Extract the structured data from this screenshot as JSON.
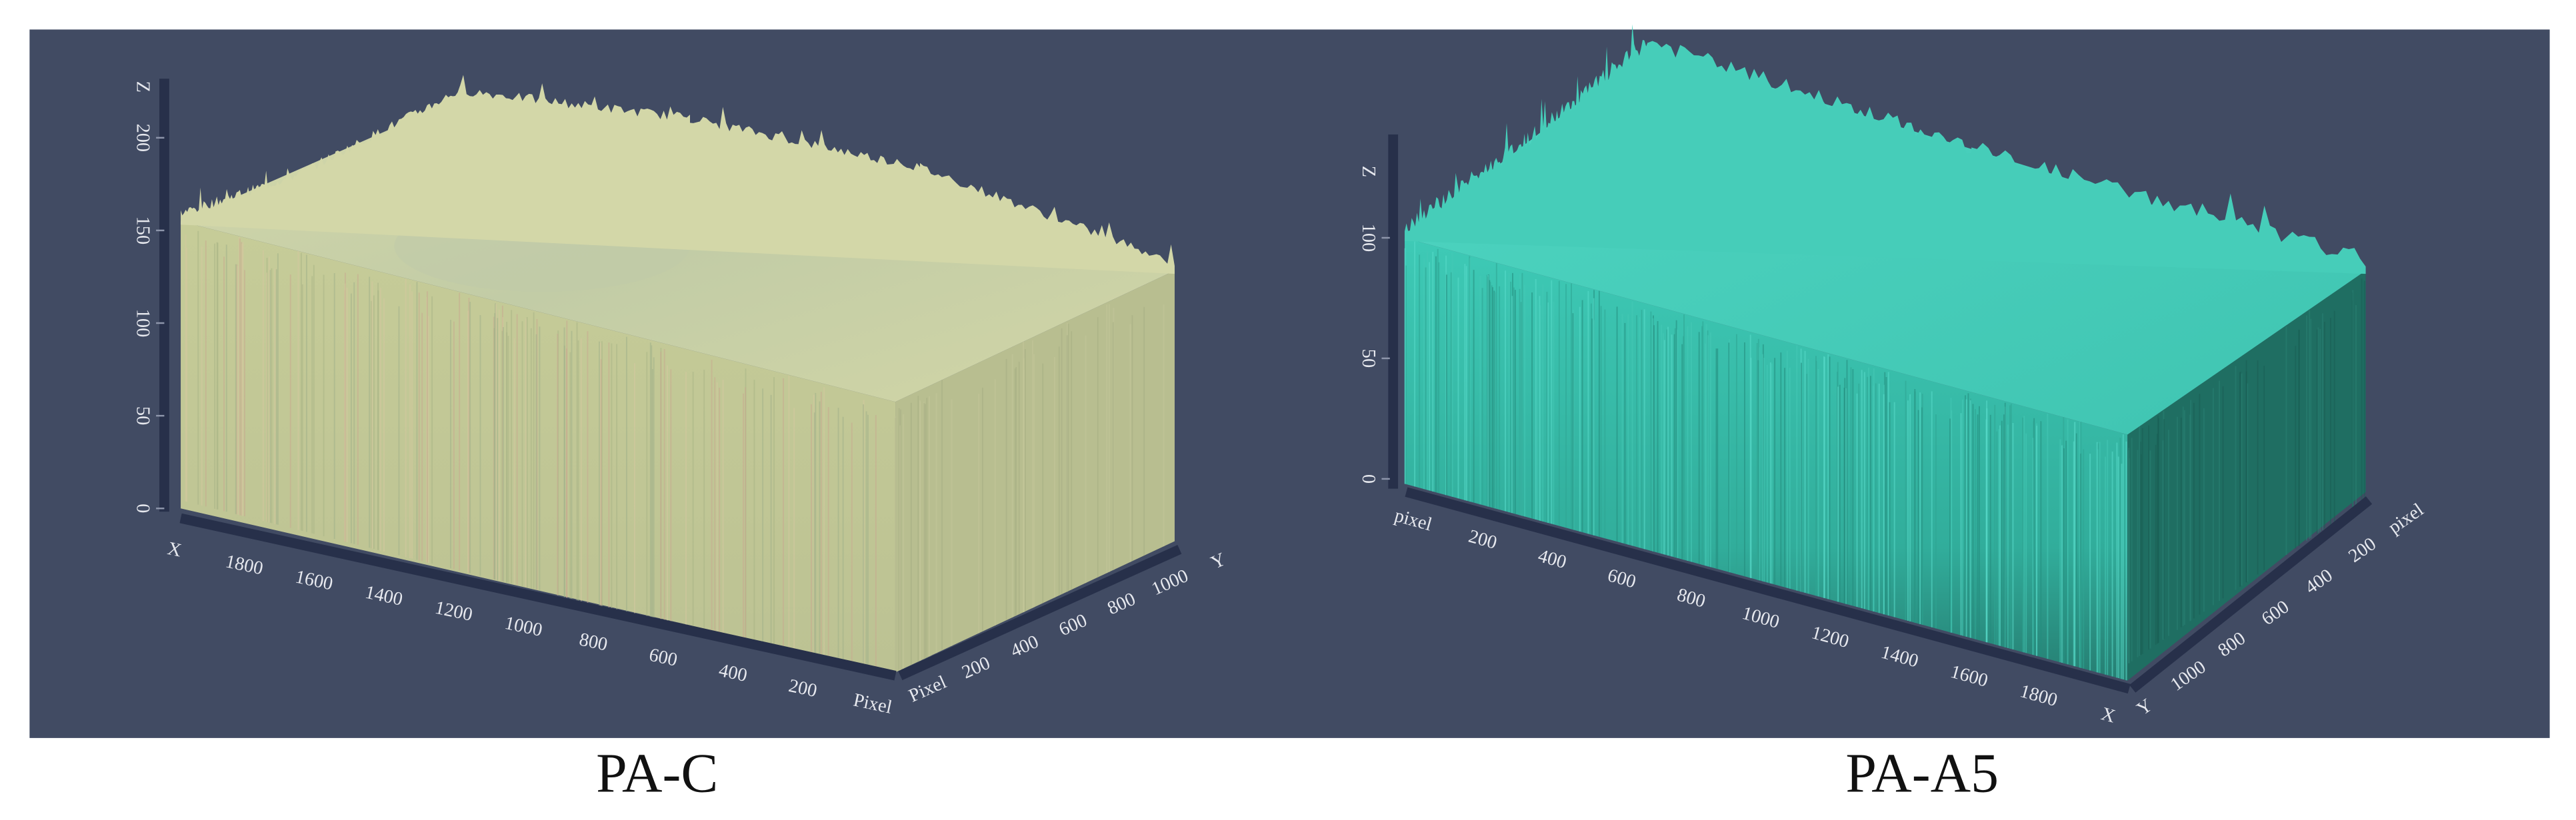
{
  "panels": [
    {
      "caption": "PA-C",
      "z_axis": {
        "label": "Z",
        "ticks": [
          0,
          50,
          100,
          150,
          200
        ]
      },
      "x_axis": {
        "label": "X",
        "ticks": [
          1800,
          1600,
          1400,
          1200,
          1000,
          800,
          600,
          400,
          200
        ],
        "end_label": "Pixel"
      },
      "y_axis": {
        "start_label": "Pixel",
        "ticks": [
          200,
          400,
          600,
          800,
          1000
        ],
        "label": "Y"
      }
    },
    {
      "caption": "PA-A5",
      "z_axis": {
        "label": "Z",
        "ticks": [
          0,
          50,
          100
        ]
      },
      "x_axis": {
        "start_label": "pixel",
        "ticks": [
          200,
          400,
          600,
          800,
          1000,
          1200,
          1400,
          1600,
          1800
        ],
        "label": "X"
      },
      "y_axis": {
        "label": "Y",
        "ticks": [
          1000,
          800,
          600,
          400,
          200
        ],
        "end_label": "pixel"
      }
    }
  ]
}
